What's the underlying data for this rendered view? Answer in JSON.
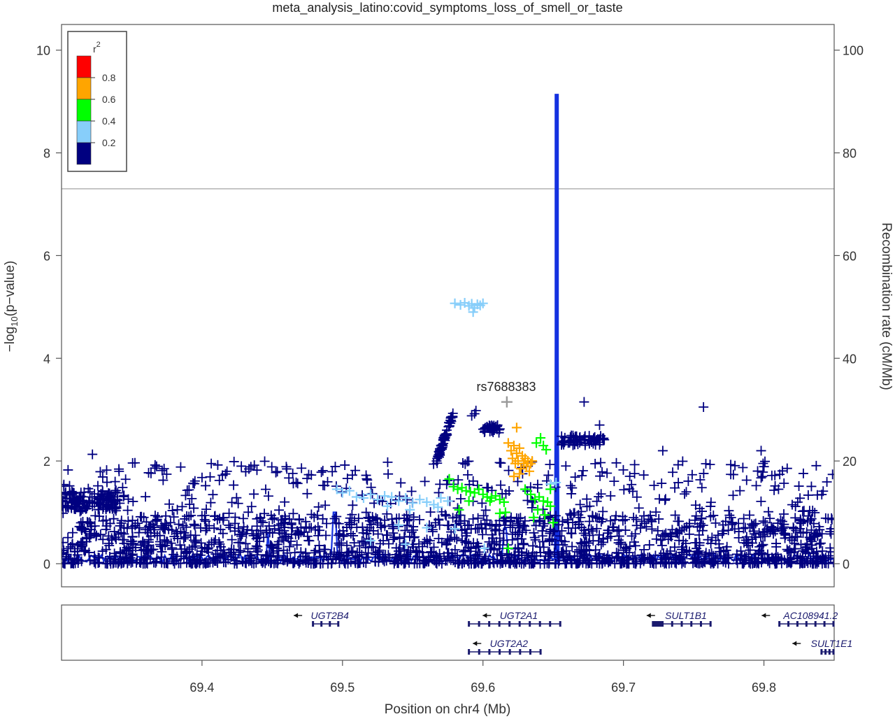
{
  "chart_data": {
    "type": "scatter",
    "title": "meta_analysis_latino:covid_symptoms_loss_of_smell_or_taste",
    "xlabel": "Position on chr4 (Mb)",
    "ylabel_left_prefix": "−log",
    "ylabel_left_sub": "10",
    "ylabel_left_suffix": "(p−value)",
    "ylabel_right": "Recombination rate (cM/Mb)",
    "xlim": [
      69.3,
      69.85
    ],
    "ylim_left": [
      -0.45,
      10.5
    ],
    "ylim_right": [
      0,
      100
    ],
    "x_ticks": [
      69.4,
      69.5,
      69.6,
      69.7,
      69.8
    ],
    "x_tick_labels": [
      "69.4",
      "69.5",
      "69.6",
      "69.7",
      "69.8"
    ],
    "y_ticks_left": [
      0,
      2,
      4,
      6,
      8,
      10
    ],
    "y_tick_labels_left": [
      "0",
      "2",
      "4",
      "6",
      "8",
      "10"
    ],
    "y_ticks_right": [
      0,
      20,
      40,
      60,
      80,
      100
    ],
    "y_tick_labels_right": [
      "0",
      "20",
      "40",
      "60",
      "80",
      "100"
    ],
    "significance_line": 7.3,
    "legend": {
      "title": "r",
      "title_sup": "2",
      "levels": [
        {
          "label": "0.8",
          "color": "#ff0000"
        },
        {
          "label": "0.6",
          "color": "#ffa500"
        },
        {
          "label": "0.4",
          "color": "#00ff00"
        },
        {
          "label": "0.2",
          "color": "#87cefa"
        },
        {
          "label": "",
          "color": "#000080"
        }
      ],
      "placement": "top-left"
    },
    "lead_snp": {
      "label": "rs7688383",
      "x": 69.617,
      "y": 3.15,
      "color": "#999999"
    },
    "colors": {
      "dark_blue": "#000080",
      "light_blue": "#87cefa",
      "green": "#00ff00",
      "orange": "#ffa500",
      "red": "#ff0000",
      "recomb_line": "#1431e0",
      "sig_line": "#999999",
      "gene": "#1a1a6e"
    },
    "series": [
      {
        "name": "r2 0.2-0.4",
        "color": "#87cefa",
        "points": [
          [
            69.58,
            5.07
          ],
          [
            69.584,
            5.04
          ],
          [
            69.587,
            5.08
          ],
          [
            69.59,
            5.02
          ],
          [
            69.592,
            5.06
          ],
          [
            69.594,
            4.98
          ],
          [
            69.596,
            5.05
          ],
          [
            69.598,
            5.03
          ],
          [
            69.6,
            5.07
          ],
          [
            69.593,
            4.9
          ],
          [
            69.496,
            1.45
          ],
          [
            69.5,
            1.38
          ],
          [
            69.505,
            1.42
          ],
          [
            69.51,
            1.3
          ],
          [
            69.515,
            1.28
          ],
          [
            69.52,
            1.35
          ],
          [
            69.525,
            1.25
          ],
          [
            69.53,
            1.32
          ],
          [
            69.535,
            1.3
          ],
          [
            69.54,
            1.22
          ],
          [
            69.545,
            1.28
          ],
          [
            69.55,
            1.18
          ],
          [
            69.555,
            1.25
          ],
          [
            69.56,
            1.2
          ],
          [
            69.565,
            1.15
          ],
          [
            69.57,
            1.28
          ],
          [
            69.575,
            1.22
          ],
          [
            69.568,
            1.1
          ],
          [
            69.548,
            1.05
          ],
          [
            69.532,
            1.12
          ],
          [
            69.54,
            0.75
          ],
          [
            69.56,
            0.7
          ],
          [
            69.58,
            0.68
          ],
          [
            69.52,
            0.45
          ],
          [
            69.545,
            0.38
          ],
          [
            69.601,
            0.3
          ],
          [
            69.648,
            1.55
          ],
          [
            69.652,
            1.58
          ]
        ]
      },
      {
        "name": "r2 0.4-0.6",
        "color": "#00ff00",
        "points": [
          [
            69.576,
            1.65
          ],
          [
            69.579,
            1.5
          ],
          [
            69.582,
            1.45
          ],
          [
            69.585,
            1.48
          ],
          [
            69.588,
            1.42
          ],
          [
            69.591,
            1.4
          ],
          [
            69.594,
            1.38
          ],
          [
            69.597,
            1.45
          ],
          [
            69.6,
            1.35
          ],
          [
            69.603,
            1.3
          ],
          [
            69.606,
            1.28
          ],
          [
            69.609,
            1.32
          ],
          [
            69.612,
            1.25
          ],
          [
            69.615,
            1.2
          ],
          [
            69.583,
            1.05
          ],
          [
            69.59,
            1.22
          ],
          [
            69.605,
            1.22
          ],
          [
            69.612,
            0.98
          ],
          [
            69.616,
            1.0
          ],
          [
            69.618,
            0.3
          ],
          [
            69.63,
            1.45
          ],
          [
            69.634,
            1.35
          ],
          [
            69.637,
            1.25
          ],
          [
            69.64,
            1.3
          ],
          [
            69.643,
            1.22
          ],
          [
            69.646,
            1.2
          ],
          [
            69.638,
            2.35
          ],
          [
            69.641,
            2.45
          ],
          [
            69.643,
            2.3
          ],
          [
            69.645,
            2.22
          ],
          [
            69.639,
            1.05
          ],
          [
            69.644,
            0.95
          ],
          [
            69.648,
            1.12
          ],
          [
            69.65,
            0.8
          ],
          [
            69.636,
            0.9
          ],
          [
            69.648,
            1.45
          ]
        ]
      },
      {
        "name": "r2 0.6-0.8",
        "color": "#ffa500",
        "points": [
          [
            69.618,
            2.35
          ],
          [
            69.62,
            2.2
          ],
          [
            69.621,
            2.05
          ],
          [
            69.622,
            2.3
          ],
          [
            69.623,
            1.95
          ],
          [
            69.624,
            2.15
          ],
          [
            69.625,
            2.0
          ],
          [
            69.626,
            2.25
          ],
          [
            69.627,
            1.85
          ],
          [
            69.628,
            2.1
          ],
          [
            69.629,
            1.95
          ],
          [
            69.63,
            2.05
          ],
          [
            69.631,
            1.9
          ],
          [
            69.632,
            2.0
          ],
          [
            69.633,
            1.8
          ],
          [
            69.634,
            1.95
          ],
          [
            69.635,
            2.0
          ],
          [
            69.624,
            2.65
          ],
          [
            69.626,
            1.75
          ],
          [
            69.622,
            1.7
          ]
        ]
      }
    ],
    "genes": [
      {
        "name": "UGT2B4",
        "start": 69.479,
        "end": 69.497,
        "strand": "-",
        "row": 1
      },
      {
        "name": "UGT2A1",
        "start": 69.59,
        "end": 69.655,
        "strand": "-",
        "row": 1
      },
      {
        "name": "SULT1B1",
        "start": 69.721,
        "end": 69.762,
        "strand": "-",
        "row": 1
      },
      {
        "name": "AC108941.2",
        "start": 69.811,
        "end": 69.85,
        "strand": "-",
        "row": 1
      },
      {
        "name": "UGT2A2",
        "start": 69.59,
        "end": 69.641,
        "strand": "-",
        "row": 2
      },
      {
        "name": "SULT1E1",
        "start": 69.841,
        "end": 69.85,
        "strand": "-",
        "row": 2
      }
    ]
  }
}
